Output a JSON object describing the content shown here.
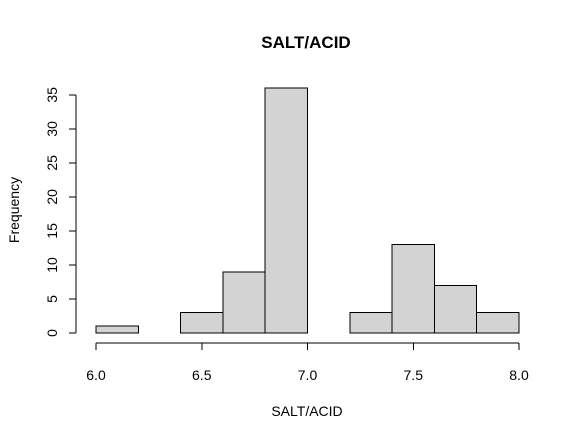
{
  "chart_data": {
    "type": "bar",
    "subtype": "histogram",
    "title": "SALT/ACID",
    "xlabel": "SALT/ACID",
    "ylabel": "Frequency",
    "bins": [
      {
        "from": 6.0,
        "to": 6.2,
        "count": 1
      },
      {
        "from": 6.2,
        "to": 6.4,
        "count": 0
      },
      {
        "from": 6.4,
        "to": 6.6,
        "count": 3
      },
      {
        "from": 6.6,
        "to": 6.8,
        "count": 9
      },
      {
        "from": 6.8,
        "to": 7.0,
        "count": 36
      },
      {
        "from": 7.0,
        "to": 7.2,
        "count": 0
      },
      {
        "from": 7.2,
        "to": 7.4,
        "count": 3
      },
      {
        "from": 7.4,
        "to": 7.6,
        "count": 13
      },
      {
        "from": 7.6,
        "to": 7.8,
        "count": 7
      },
      {
        "from": 7.8,
        "to": 8.0,
        "count": 3
      }
    ],
    "xlim": [
      6.0,
      8.0
    ],
    "ylim": [
      0,
      36
    ],
    "xticks": [
      "6.0",
      "6.5",
      "7.0",
      "7.5",
      "8.0"
    ],
    "yticks": [
      "0",
      "5",
      "10",
      "15",
      "20",
      "25",
      "30",
      "35"
    ],
    "bar_color": "#d3d3d3",
    "edge_color": "#000000",
    "grid": false,
    "legend": "none"
  }
}
